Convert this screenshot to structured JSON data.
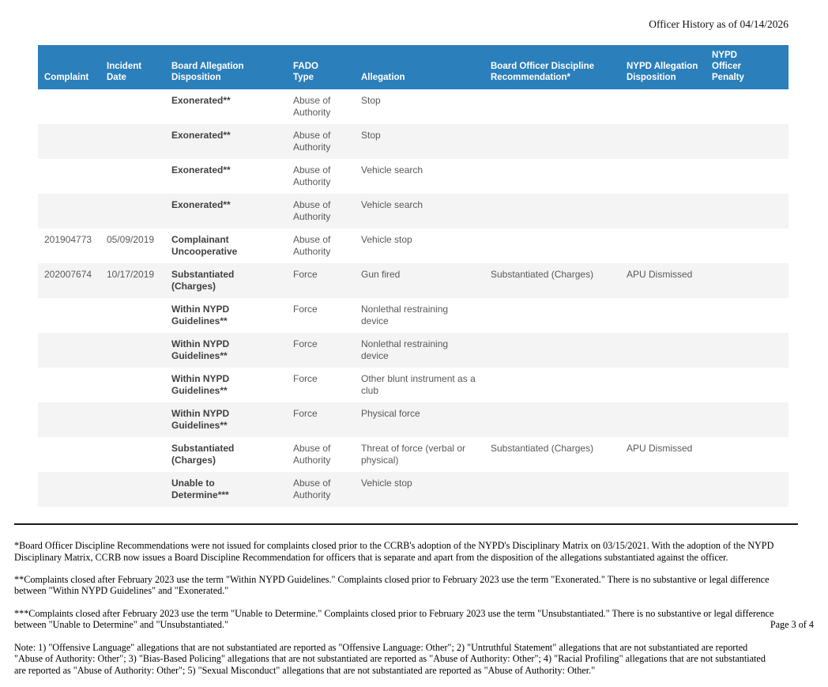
{
  "page": {
    "title": "Officer History as of 04/14/2026",
    "page_label": "Page 3 of 4"
  },
  "colors": {
    "header_bg": "#2B7FBA",
    "row_alt_bg": "#F4F4F4",
    "header_text": "#FFFFFF",
    "body_text": "#58595B"
  },
  "table": {
    "columns": [
      "Complaint",
      "Incident Date",
      "Board Allegation Disposition",
      "FADO Type",
      "Allegation",
      "Board Officer Discipline Recommendation*",
      "NYPD Allegation Disposition",
      "NYPD Officer Penalty"
    ],
    "column_keys": [
      "complaint",
      "incident-date",
      "board-allegation-disposition",
      "fado-type",
      "allegation",
      "board-officer-discipline-recommendation",
      "nypd-allegation-disposition",
      "nypd-officer-penalty"
    ],
    "rows": [
      [
        "",
        "",
        "Exonerated**",
        "Abuse of Authority",
        "Stop",
        "",
        "",
        ""
      ],
      [
        "",
        "",
        "Exonerated**",
        "Abuse of Authority",
        "Stop",
        "",
        "",
        ""
      ],
      [
        "",
        "",
        "Exonerated**",
        "Abuse of Authority",
        "Vehicle search",
        "",
        "",
        ""
      ],
      [
        "",
        "",
        "Exonerated**",
        "Abuse of Authority",
        "Vehicle search",
        "",
        "",
        ""
      ],
      [
        "201904773",
        "05/09/2019",
        "Complainant Uncooperative",
        "Abuse of Authority",
        "Vehicle stop",
        "",
        "",
        ""
      ],
      [
        "202007674",
        "10/17/2019",
        "Substantiated (Charges)",
        "Force",
        "Gun fired",
        "Substantiated (Charges)",
        "APU Dismissed",
        ""
      ],
      [
        "",
        "",
        "Within NYPD Guidelines**",
        "Force",
        "Nonlethal restraining device",
        "",
        "",
        ""
      ],
      [
        "",
        "",
        "Within NYPD Guidelines**",
        "Force",
        "Nonlethal restraining device",
        "",
        "",
        ""
      ],
      [
        "",
        "",
        "Within NYPD Guidelines**",
        "Force",
        "Other blunt instrument as a club",
        "",
        "",
        ""
      ],
      [
        "",
        "",
        "Within NYPD Guidelines**",
        "Force",
        "Physical force",
        "",
        "",
        ""
      ],
      [
        "",
        "",
        "Substantiated (Charges)",
        "Abuse of Authority",
        "Threat of force (verbal or physical)",
        "Substantiated (Charges)",
        "APU Dismissed",
        ""
      ],
      [
        "",
        "",
        "Unable to Determine***",
        "Abuse of Authority",
        "Vehicle stop",
        "",
        "",
        ""
      ]
    ]
  },
  "footnotes": [
    "*Board Officer Discipline Recommendations were not issued for complaints closed prior to the CCRB's adoption of the NYPD's Disciplinary Matrix on 03/15/2021. With the adoption of the NYPD\nDisciplinary Matrix, CCRB now issues a Board Discipline Recommendation for officers that is separate and apart from the disposition of the allegations substantiated against the officer.",
    "**Complaints closed after February 2023 use the term \"Within NYPD Guidelines.\" Complaints closed prior to February 2023 use the term \"Exonerated.\" There is no substantive or legal difference\nbetween \"Within NYPD Guidelines\" and \"Exonerated.\"",
    "***Complaints closed after February 2023 use the term \"Unable to Determine.\" Complaints closed prior to February 2023 use the term \"Unsubstantiated.\" There is no substantive or legal difference\nbetween \"Unable to Determine\" and \"Unsubstantiated.\"",
    "Note: 1) \"Offensive Language\" allegations that are not substantiated are reported as \"Offensive Language: Other\"; 2) \"Untruthful Statement\" allegations that are not substantiated are reported\n\"Abuse of Authority: Other\"; 3) \"Bias-Based Policing\" allegations that are not substantiated are reported as \"Abuse of Authority: Other\"; 4) \"Racial Profiling\" allegations that are not substantiated\nare reported as \"Abuse of Authority: Other\"; 5) \"Sexual Misconduct\" allegations that are not substantiated are reported as \"Abuse of Authority: Other.\""
  ]
}
